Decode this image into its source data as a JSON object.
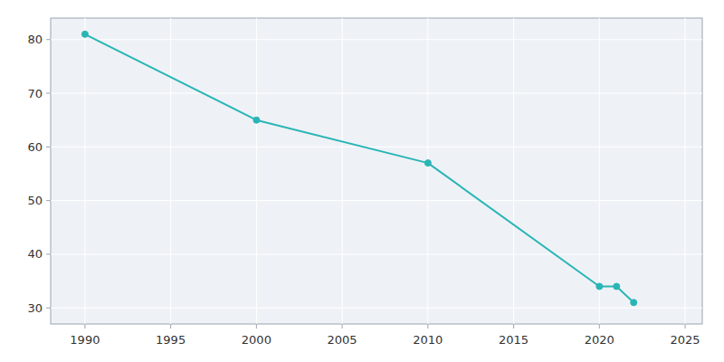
{
  "chart_data": {
    "type": "line",
    "x": [
      1990,
      2000,
      2010,
      2020,
      2021,
      2022
    ],
    "values": [
      81,
      65,
      57,
      34,
      34,
      31
    ],
    "color": "#2ab5b5",
    "marker": "circle",
    "xlim": [
      1988,
      2026
    ],
    "ylim": [
      27,
      84
    ],
    "xticks": [
      1990,
      1995,
      2000,
      2005,
      2010,
      2015,
      2020,
      2025
    ],
    "yticks": [
      30,
      40,
      50,
      60,
      70,
      80
    ],
    "grid": true
  }
}
